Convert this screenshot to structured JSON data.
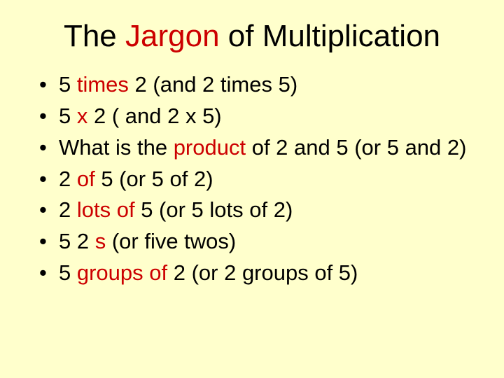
{
  "slide": {
    "background_color": "#ffffcc",
    "text_color": "#000000",
    "accent_color": "#cc0000",
    "font_family": "Comic Sans MS",
    "title_fontsize": 44,
    "bullet_fontsize": 31,
    "title": {
      "segments": [
        {
          "text": "The ",
          "color": "#000000"
        },
        {
          "text": "Jargon",
          "color": "#cc0000"
        },
        {
          "text": " of Multiplication",
          "color": "#000000"
        }
      ]
    },
    "bullets": [
      {
        "runs": [
          {
            "text": "5 ",
            "color": "#000000"
          },
          {
            "text": "times",
            "color": "#cc0000"
          },
          {
            "text": " 2 (and 2 times 5)",
            "color": "#000000"
          }
        ]
      },
      {
        "runs": [
          {
            "text": "5 ",
            "color": "#000000"
          },
          {
            "text": "x",
            "color": "#cc0000"
          },
          {
            "text": " 2 ( and 2 x 5)",
            "color": "#000000"
          }
        ]
      },
      {
        "runs": [
          {
            "text": "What is the ",
            "color": "#000000"
          },
          {
            "text": "product",
            "color": "#cc0000"
          },
          {
            "text": " of 2 and 5 (or 5 and 2)",
            "color": "#000000"
          }
        ]
      },
      {
        "runs": [
          {
            "text": "2 ",
            "color": "#000000"
          },
          {
            "text": "of",
            "color": "#cc0000"
          },
          {
            "text": " 5 (or 5 of 2)",
            "color": "#000000"
          }
        ]
      },
      {
        "runs": [
          {
            "text": "2 ",
            "color": "#000000"
          },
          {
            "text": "lots of",
            "color": "#cc0000"
          },
          {
            "text": " 5 (or 5 lots of 2)",
            "color": "#000000"
          }
        ]
      },
      {
        "runs": [
          {
            "text": "5 2 ",
            "color": "#000000"
          },
          {
            "text": "s",
            "color": "#cc0000"
          },
          {
            "text": " (or five twos)",
            "color": "#000000"
          }
        ]
      },
      {
        "runs": [
          {
            "text": "5 ",
            "color": "#000000"
          },
          {
            "text": "groups of",
            "color": "#cc0000"
          },
          {
            "text": " 2 (or 2 groups of 5)",
            "color": "#000000"
          }
        ]
      }
    ]
  }
}
